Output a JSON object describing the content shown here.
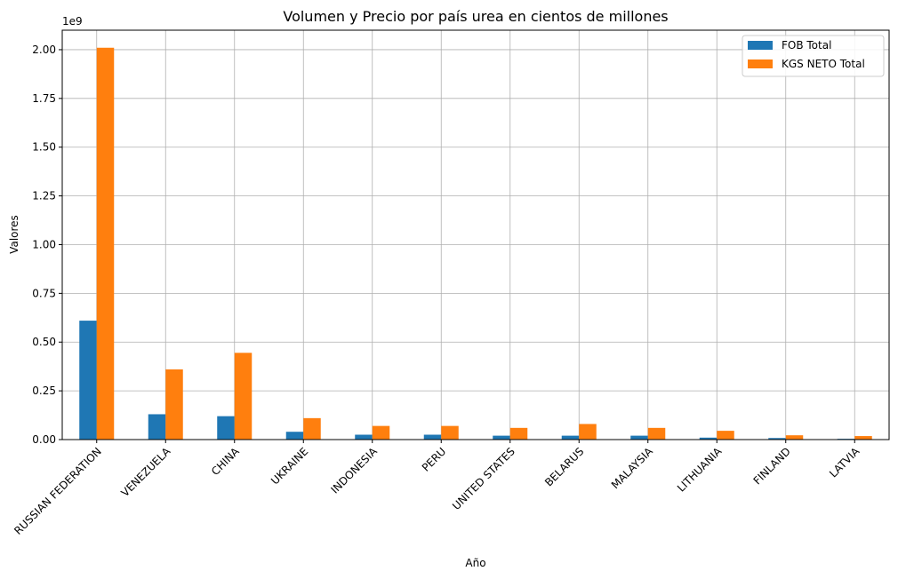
{
  "chart_data": {
    "type": "bar",
    "title": "Volumen y Precio por país urea en cientos de millones",
    "xlabel": "Año",
    "ylabel": "Valores",
    "y_scale_label": "1e9",
    "ylim": [
      0,
      2.1
    ],
    "yticks": [
      "0.00",
      "0.25",
      "0.50",
      "0.75",
      "1.00",
      "1.25",
      "1.50",
      "1.75",
      "2.00"
    ],
    "grid": true,
    "legend_position": "top-right",
    "categories": [
      "RUSSIAN FEDERATION",
      "VENEZUELA",
      "CHINA",
      "UKRAINE",
      "INDONESIA",
      "PERU",
      "UNITED STATES",
      "BELARUS",
      "MALAYSIA",
      "LITHUANIA",
      "FINLAND",
      "LATVIA"
    ],
    "series": [
      {
        "name": "FOB Total",
        "color": "#1f77b4",
        "values": [
          0.61,
          0.13,
          0.12,
          0.04,
          0.025,
          0.025,
          0.02,
          0.02,
          0.02,
          0.01,
          0.008,
          0.004
        ]
      },
      {
        "name": "KGS NETO Total",
        "color": "#ff7f0e",
        "values": [
          2.01,
          0.36,
          0.445,
          0.11,
          0.07,
          0.07,
          0.06,
          0.08,
          0.06,
          0.045,
          0.022,
          0.018
        ]
      }
    ]
  }
}
